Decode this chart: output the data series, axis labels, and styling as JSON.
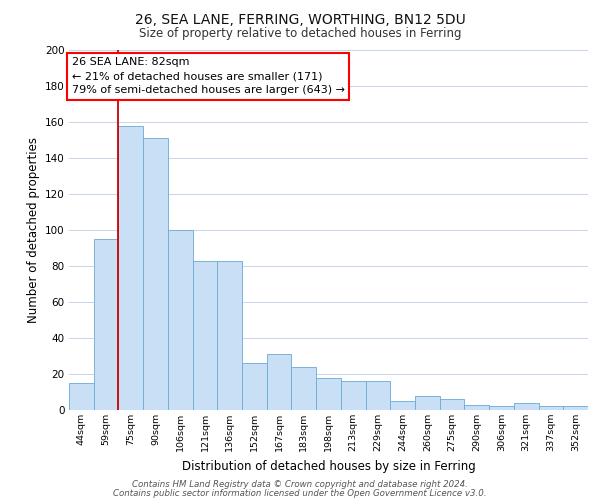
{
  "title": "26, SEA LANE, FERRING, WORTHING, BN12 5DU",
  "subtitle": "Size of property relative to detached houses in Ferring",
  "xlabel": "Distribution of detached houses by size in Ferring",
  "ylabel": "Number of detached properties",
  "bar_color": "#c9dff5",
  "bar_edge_color": "#6aaad4",
  "background_color": "#ffffff",
  "grid_color": "#c8d4e8",
  "annotation_text": "26 SEA LANE: 82sqm\n← 21% of detached houses are smaller (171)\n79% of semi-detached houses are larger (643) →",
  "redline_color": "#cc0000",
  "categories": [
    "44sqm",
    "59sqm",
    "75sqm",
    "90sqm",
    "106sqm",
    "121sqm",
    "136sqm",
    "152sqm",
    "167sqm",
    "183sqm",
    "198sqm",
    "213sqm",
    "229sqm",
    "244sqm",
    "260sqm",
    "275sqm",
    "290sqm",
    "306sqm",
    "321sqm",
    "337sqm",
    "352sqm"
  ],
  "values": [
    15,
    95,
    158,
    151,
    100,
    83,
    83,
    26,
    31,
    24,
    18,
    16,
    16,
    5,
    8,
    6,
    3,
    2,
    4,
    2,
    2
  ],
  "ylim": [
    0,
    200
  ],
  "yticks": [
    0,
    20,
    40,
    60,
    80,
    100,
    120,
    140,
    160,
    180,
    200
  ],
  "redline_bar_index": 2,
  "footer_line1": "Contains HM Land Registry data © Crown copyright and database right 2024.",
  "footer_line2": "Contains public sector information licensed under the Open Government Licence v3.0."
}
